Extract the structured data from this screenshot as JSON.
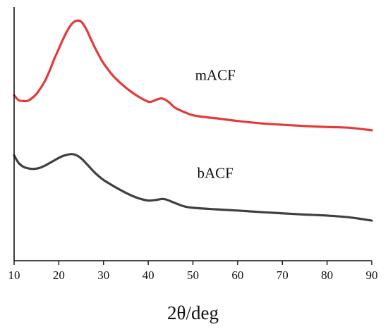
{
  "chart_data": {
    "type": "line",
    "title": "",
    "xlabel": "2θ/deg",
    "ylabel": "",
    "xlim": [
      10,
      90
    ],
    "ylim": [
      0,
      1
    ],
    "x_ticks": [
      10,
      20,
      30,
      40,
      50,
      60,
      70,
      80,
      90
    ],
    "y_ticks": [],
    "grid": false,
    "legend": "none",
    "series": [
      {
        "name": "mACF",
        "color": "#e53a3a",
        "x": [
          10,
          11,
          12,
          13,
          14,
          15,
          16,
          17,
          18,
          19,
          20,
          21,
          22,
          23,
          24,
          25,
          26,
          27,
          28,
          29,
          30,
          32,
          34,
          36,
          38,
          40,
          41,
          42,
          43,
          44,
          45,
          46,
          48,
          50,
          53,
          56,
          60,
          65,
          70,
          75,
          80,
          85,
          90
        ],
        "y": [
          0.66,
          0.64,
          0.637,
          0.637,
          0.648,
          0.665,
          0.69,
          0.72,
          0.76,
          0.805,
          0.845,
          0.885,
          0.92,
          0.946,
          0.957,
          0.953,
          0.928,
          0.89,
          0.852,
          0.818,
          0.787,
          0.74,
          0.705,
          0.676,
          0.652,
          0.634,
          0.636,
          0.643,
          0.647,
          0.64,
          0.626,
          0.61,
          0.593,
          0.58,
          0.572,
          0.566,
          0.557,
          0.548,
          0.542,
          0.537,
          0.533,
          0.53,
          0.52
        ]
      },
      {
        "name": "bACF",
        "color": "#404040",
        "x": [
          10,
          11,
          12,
          13,
          14,
          15,
          16,
          17,
          18,
          19,
          20,
          21,
          22,
          23,
          24,
          25,
          26,
          27,
          28,
          29,
          30,
          32,
          34,
          36,
          38,
          40,
          42,
          43,
          44,
          46,
          48,
          50,
          55,
          60,
          65,
          70,
          75,
          80,
          85,
          90
        ],
        "y": [
          0.42,
          0.39,
          0.375,
          0.369,
          0.366,
          0.367,
          0.372,
          0.38,
          0.39,
          0.4,
          0.41,
          0.418,
          0.423,
          0.425,
          0.42,
          0.408,
          0.39,
          0.371,
          0.352,
          0.336,
          0.322,
          0.3,
          0.28,
          0.262,
          0.248,
          0.24,
          0.243,
          0.246,
          0.244,
          0.23,
          0.217,
          0.211,
          0.205,
          0.2,
          0.194,
          0.189,
          0.184,
          0.18,
          0.173,
          0.16
        ]
      }
    ],
    "annotations": [
      {
        "text": "mACF",
        "x": 55,
        "y": 0.72
      },
      {
        "text": "bACF",
        "x": 55,
        "y": 0.33
      }
    ]
  }
}
